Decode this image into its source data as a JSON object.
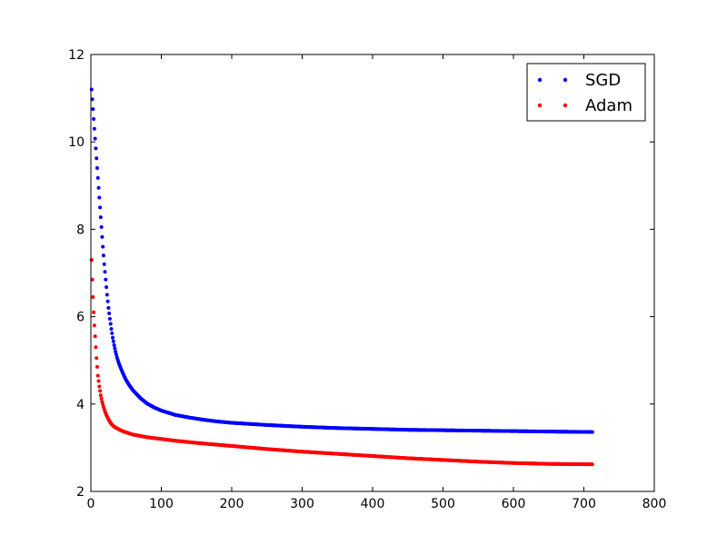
{
  "chart_data": {
    "type": "scatter",
    "title": "",
    "xlabel": "",
    "ylabel": "",
    "xlim": [
      0,
      800
    ],
    "ylim": [
      2,
      12
    ],
    "xticks": [
      0,
      100,
      200,
      300,
      400,
      500,
      600,
      700,
      800
    ],
    "yticks": [
      2,
      4,
      6,
      8,
      10,
      12
    ],
    "grid": false,
    "legend": {
      "position": "top-right"
    },
    "series": [
      {
        "name": "SGD",
        "color": "#0000ff",
        "x": [
          1,
          3,
          5,
          7,
          9,
          11,
          13,
          15,
          17,
          19,
          21,
          23,
          25,
          27,
          29,
          31,
          33,
          35,
          37,
          40,
          45,
          50,
          55,
          60,
          70,
          80,
          90,
          100,
          120,
          140,
          160,
          180,
          200,
          250,
          300,
          350,
          400,
          450,
          500,
          550,
          600,
          650,
          712
        ],
        "y": [
          11.2,
          10.75,
          10.3,
          9.85,
          9.4,
          8.95,
          8.5,
          8.05,
          7.6,
          7.2,
          6.85,
          6.5,
          6.2,
          5.95,
          5.72,
          5.52,
          5.35,
          5.2,
          5.07,
          4.92,
          4.72,
          4.55,
          4.42,
          4.31,
          4.14,
          4.01,
          3.92,
          3.85,
          3.75,
          3.69,
          3.64,
          3.6,
          3.57,
          3.52,
          3.48,
          3.45,
          3.43,
          3.41,
          3.4,
          3.39,
          3.38,
          3.37,
          3.36
        ]
      },
      {
        "name": "Adam",
        "color": "#ff0000",
        "x": [
          1,
          2,
          3,
          4,
          5,
          6,
          7,
          8,
          9,
          10,
          12,
          14,
          16,
          18,
          20,
          22,
          25,
          28,
          31,
          35,
          40,
          45,
          50,
          60,
          70,
          80,
          100,
          120,
          150,
          200,
          250,
          300,
          350,
          400,
          450,
          500,
          550,
          600,
          650,
          712
        ],
        "y": [
          7.3,
          6.85,
          6.45,
          6.1,
          5.8,
          5.55,
          5.3,
          5.05,
          4.85,
          4.65,
          4.4,
          4.2,
          4.05,
          3.93,
          3.83,
          3.75,
          3.65,
          3.57,
          3.51,
          3.46,
          3.42,
          3.38,
          3.35,
          3.3,
          3.27,
          3.24,
          3.2,
          3.16,
          3.11,
          3.04,
          2.97,
          2.91,
          2.86,
          2.81,
          2.76,
          2.72,
          2.68,
          2.65,
          2.63,
          2.62
        ]
      }
    ]
  }
}
